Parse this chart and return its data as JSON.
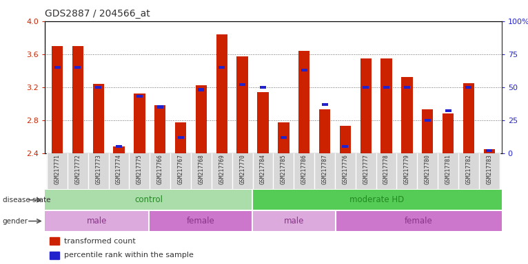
{
  "title": "GDS2887 / 204566_at",
  "samples": [
    "GSM217771",
    "GSM217772",
    "GSM217773",
    "GSM217774",
    "GSM217775",
    "GSM217766",
    "GSM217767",
    "GSM217768",
    "GSM217769",
    "GSM217770",
    "GSM217784",
    "GSM217785",
    "GSM217786",
    "GSM217787",
    "GSM217776",
    "GSM217777",
    "GSM217778",
    "GSM217779",
    "GSM217780",
    "GSM217781",
    "GSM217782",
    "GSM217783"
  ],
  "red_values": [
    3.7,
    3.7,
    3.24,
    2.48,
    3.12,
    2.98,
    2.77,
    3.22,
    3.84,
    3.57,
    3.14,
    2.77,
    3.64,
    2.93,
    2.73,
    3.55,
    3.55,
    3.32,
    2.93,
    2.88,
    3.25,
    2.45
  ],
  "blue_percentiles": [
    65,
    65,
    50,
    5,
    43,
    35,
    12,
    48,
    65,
    52,
    50,
    12,
    63,
    37,
    5,
    50,
    50,
    50,
    25,
    32,
    50,
    2
  ],
  "ylim": [
    2.4,
    4.0
  ],
  "yticks": [
    2.4,
    2.8,
    3.2,
    3.6,
    4.0
  ],
  "right_yticks": [
    0,
    25,
    50,
    75,
    100
  ],
  "right_yticklabels": [
    "0",
    "25",
    "50",
    "75",
    "100%"
  ],
  "bar_color": "#cc2200",
  "blue_color": "#2222cc",
  "grid_color": "#666666",
  "title_color": "#333333",
  "left_tick_color": "#cc2200",
  "right_tick_color": "#2222cc",
  "disease_state_groups": [
    {
      "label": "control",
      "start": 0,
      "end": 10,
      "color": "#aaddaa"
    },
    {
      "label": "moderate HD",
      "start": 10,
      "end": 22,
      "color": "#55cc55"
    }
  ],
  "gender_groups": [
    {
      "label": "male",
      "start": 0,
      "end": 5,
      "color": "#ddaadd"
    },
    {
      "label": "female",
      "start": 5,
      "end": 10,
      "color": "#cc77cc"
    },
    {
      "label": "male",
      "start": 10,
      "end": 14,
      "color": "#ddaadd"
    },
    {
      "label": "female",
      "start": 14,
      "end": 22,
      "color": "#cc77cc"
    }
  ],
  "legend_items": [
    {
      "label": "transformed count",
      "color": "#cc2200"
    },
    {
      "label": "percentile rank within the sample",
      "color": "#2222cc"
    }
  ]
}
